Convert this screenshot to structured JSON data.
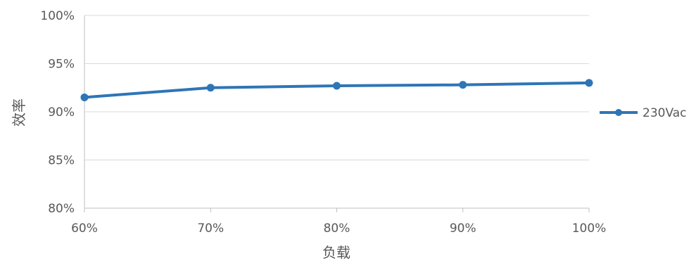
{
  "chart_data": {
    "type": "line",
    "title": "",
    "xlabel": "负载",
    "ylabel": "效率",
    "categories": [
      "60%",
      "70%",
      "80%",
      "90%",
      "100%"
    ],
    "y_tick_labels": [
      "80%",
      "85%",
      "90%",
      "95%",
      "100%"
    ],
    "ylim": [
      80,
      100
    ],
    "grid": true,
    "legend_position": "right",
    "series": [
      {
        "name": "230Vac",
        "values": [
          91.5,
          92.5,
          92.7,
          92.8,
          93.0
        ],
        "color": "#2e75b6"
      }
    ]
  }
}
